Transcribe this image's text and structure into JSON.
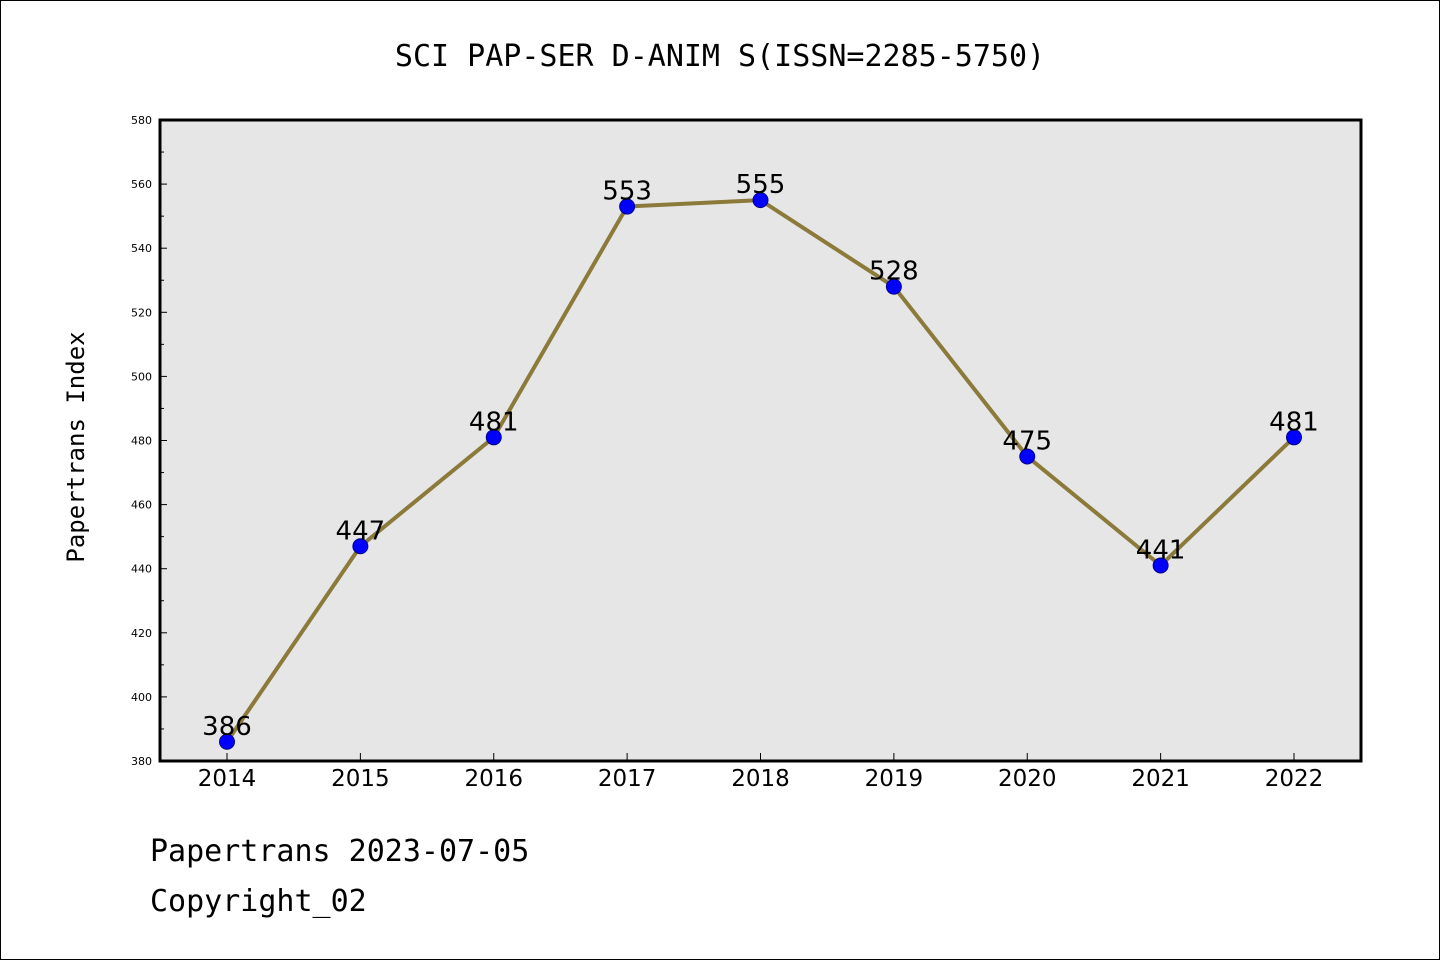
{
  "chart_data": {
    "type": "line",
    "title": "SCI PAP-SER D-ANIM S(ISSN=2285-5750)",
    "xlabel": "",
    "ylabel": "Papertrans Index",
    "categories": [
      "2014",
      "2015",
      "2016",
      "2017",
      "2018",
      "2019",
      "2020",
      "2021",
      "2022"
    ],
    "series": [
      {
        "values": [
          386,
          447,
          481,
          553,
          555,
          528,
          475,
          441,
          481
        ]
      }
    ],
    "data_labels": [
      "386",
      "447",
      "481",
      "553",
      "555",
      "528",
      "475",
      "441",
      "481"
    ],
    "ylim": [
      380,
      580
    ],
    "yticks": [
      380,
      400,
      420,
      440,
      460,
      480,
      500,
      520,
      540,
      560,
      580
    ],
    "ytick_labels": [
      "380",
      "400",
      "420",
      "440",
      "460",
      "480",
      "500",
      "520",
      "540",
      "560",
      "580"
    ],
    "grid": false,
    "legend": "none",
    "colors": {
      "plot_background": "#e6e6e6",
      "line": "#8b7a3a",
      "marker_fill": "#0000ff",
      "marker_edge": "#00008b"
    }
  },
  "footer": {
    "source": "Papertrans 2023-07-05",
    "copyright": "Copyright_02"
  }
}
